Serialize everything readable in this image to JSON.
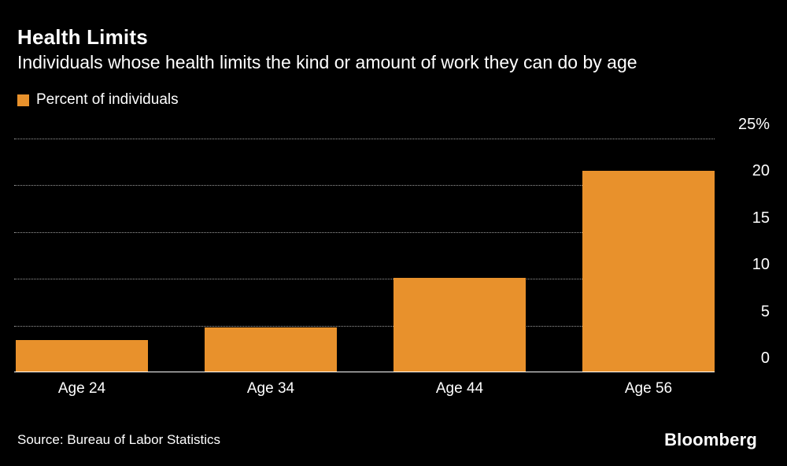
{
  "header": {
    "title": "Health Limits",
    "subtitle": "Individuals whose health limits the kind or amount of work they can do by age"
  },
  "legend": {
    "label": "Percent of individuals"
  },
  "footer": {
    "source": "Source: Bureau of Labor Statistics",
    "brand": "Bloomberg"
  },
  "colors": {
    "background": "#000000",
    "text": "#ffffff",
    "bar": "#e8912c",
    "grid": "#9b9b9b"
  },
  "chart_data": {
    "type": "bar",
    "title": "Health Limits",
    "subtitle": "Individuals whose health limits the kind or amount of work they can do by age",
    "categories": [
      "Age 24",
      "Age 34",
      "Age 44",
      "Age 56"
    ],
    "values": [
      3.4,
      4.7,
      10,
      21.5
    ],
    "series_name": "Percent of individuals",
    "xlabel": "",
    "ylabel": "Percent of individuals",
    "ylim": [
      0,
      25
    ],
    "yticks": [
      {
        "value": 0,
        "label": "0"
      },
      {
        "value": 5,
        "label": "5"
      },
      {
        "value": 10,
        "label": "10"
      },
      {
        "value": 15,
        "label": "15"
      },
      {
        "value": 20,
        "label": "20"
      },
      {
        "value": 25,
        "label": "25%"
      }
    ],
    "grid": "horizontal-dotted",
    "legend_position": "top-left",
    "y_axis_side": "right",
    "bar_color": "#e8912c",
    "source": "Source: Bureau of Labor Statistics"
  }
}
